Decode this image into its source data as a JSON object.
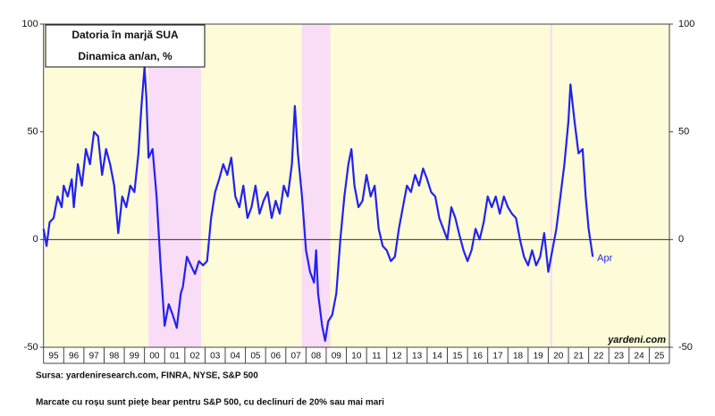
{
  "chart_data": {
    "type": "line",
    "title": "Datoria în marjă SUA",
    "subtitle": "Dinamica an/an, %",
    "source": "Sursa: yardeniresearch.com, FINRA, NYSE, S&P 500",
    "note": "Marcate cu roșu sunt piețe bear pentru S&P 500, cu declinuri de 20% sau mai mari",
    "watermark": "yardeni.com",
    "end_label": "Apr",
    "xlim": [
      1995,
      2026
    ],
    "ylim": [
      -50,
      100
    ],
    "yticks": [
      -50,
      0,
      50,
      100
    ],
    "y2lim": [
      -50,
      100
    ],
    "y2ticks": [
      -50,
      0,
      50,
      100
    ],
    "xticks": [
      {
        "value": 1995.5,
        "label": "95"
      },
      {
        "value": 1996.5,
        "label": "96"
      },
      {
        "value": 1997.5,
        "label": "97"
      },
      {
        "value": 1998.5,
        "label": "98"
      },
      {
        "value": 1999.5,
        "label": "99"
      },
      {
        "value": 2000.5,
        "label": "00"
      },
      {
        "value": 2001.5,
        "label": "01"
      },
      {
        "value": 2002.5,
        "label": "02"
      },
      {
        "value": 2003.5,
        "label": "03"
      },
      {
        "value": 2004.5,
        "label": "04"
      },
      {
        "value": 2005.5,
        "label": "05"
      },
      {
        "value": 2006.5,
        "label": "06"
      },
      {
        "value": 2007.5,
        "label": "07"
      },
      {
        "value": 2008.5,
        "label": "08"
      },
      {
        "value": 2009.5,
        "label": "09"
      },
      {
        "value": 2010.5,
        "label": "10"
      },
      {
        "value": 2011.5,
        "label": "11"
      },
      {
        "value": 2012.5,
        "label": "12"
      },
      {
        "value": 2013.5,
        "label": "13"
      },
      {
        "value": 2014.5,
        "label": "14"
      },
      {
        "value": 2015.5,
        "label": "15"
      },
      {
        "value": 2016.5,
        "label": "16"
      },
      {
        "value": 2017.5,
        "label": "17"
      },
      {
        "value": 2018.5,
        "label": "18"
      },
      {
        "value": 2019.5,
        "label": "19"
      },
      {
        "value": 2020.5,
        "label": "20"
      },
      {
        "value": 2021.5,
        "label": "21"
      },
      {
        "value": 2022.5,
        "label": "22"
      },
      {
        "value": 2023.5,
        "label": "23"
      },
      {
        "value": 2024.5,
        "label": "24"
      },
      {
        "value": 2025.5,
        "label": "25"
      }
    ],
    "zero_line": true,
    "background": "#fdfbd8",
    "shade_color": "#f9dcf6",
    "shaded": [
      [
        2000.2,
        2002.8
      ],
      [
        2007.8,
        2009.2
      ],
      [
        2020.1,
        2020.2
      ]
    ],
    "series": [
      {
        "name": "Datoria în marjă",
        "color": "#2222ee",
        "x": [
          1995.0,
          1995.15,
          1995.3,
          1995.5,
          1995.7,
          1995.9,
          1996.0,
          1996.2,
          1996.4,
          1996.5,
          1996.7,
          1996.9,
          1997.1,
          1997.3,
          1997.5,
          1997.7,
          1997.9,
          1998.1,
          1998.3,
          1998.5,
          1998.7,
          1998.9,
          1999.1,
          1999.3,
          1999.5,
          1999.7,
          1999.85,
          2000.0,
          2000.1,
          2000.2,
          2000.4,
          2000.6,
          2000.8,
          2001.0,
          2001.2,
          2001.4,
          2001.6,
          2001.8,
          2001.9,
          2002.1,
          2002.3,
          2002.5,
          2002.7,
          2002.9,
          2003.1,
          2003.3,
          2003.5,
          2003.7,
          2003.9,
          2004.1,
          2004.3,
          2004.5,
          2004.7,
          2004.9,
          2005.1,
          2005.3,
          2005.5,
          2005.7,
          2005.9,
          2006.1,
          2006.3,
          2006.5,
          2006.7,
          2006.9,
          2007.1,
          2007.3,
          2007.45,
          2007.6,
          2007.8,
          2008.0,
          2008.2,
          2008.4,
          2008.5,
          2008.6,
          2008.8,
          2008.95,
          2009.1,
          2009.3,
          2009.5,
          2009.7,
          2009.9,
          2010.1,
          2010.25,
          2010.4,
          2010.6,
          2010.8,
          2011.0,
          2011.2,
          2011.4,
          2011.6,
          2011.8,
          2012.0,
          2012.2,
          2012.4,
          2012.6,
          2012.8,
          2013.0,
          2013.2,
          2013.4,
          2013.6,
          2013.8,
          2014.0,
          2014.2,
          2014.4,
          2014.6,
          2014.8,
          2015.0,
          2015.2,
          2015.4,
          2015.6,
          2015.8,
          2016.0,
          2016.2,
          2016.4,
          2016.6,
          2016.8,
          2017.0,
          2017.2,
          2017.4,
          2017.6,
          2017.8,
          2018.0,
          2018.2,
          2018.4,
          2018.6,
          2018.8,
          2019.0,
          2019.2,
          2019.4,
          2019.6,
          2019.8,
          2020.0,
          2020.2,
          2020.4,
          2020.6,
          2020.8,
          2021.0,
          2021.1,
          2021.3,
          2021.5,
          2021.7,
          2021.85,
          2022.0,
          2022.2
        ],
        "values": [
          5,
          -3,
          8,
          10,
          20,
          15,
          25,
          20,
          28,
          15,
          35,
          25,
          42,
          35,
          50,
          48,
          30,
          42,
          35,
          25,
          3,
          20,
          15,
          25,
          22,
          40,
          62,
          80,
          65,
          38,
          42,
          20,
          -12,
          -40,
          -30,
          -35,
          -41,
          -25,
          -22,
          -8,
          -12,
          -16,
          -10,
          -12,
          -10,
          10,
          22,
          28,
          35,
          30,
          38,
          20,
          15,
          25,
          10,
          15,
          25,
          12,
          18,
          22,
          10,
          18,
          12,
          25,
          20,
          35,
          62,
          40,
          20,
          -5,
          -15,
          -20,
          -5,
          -25,
          -40,
          -47,
          -38,
          -35,
          -25,
          0,
          20,
          35,
          42,
          25,
          15,
          18,
          30,
          20,
          25,
          5,
          -3,
          -5,
          -10,
          -8,
          5,
          15,
          25,
          22,
          30,
          25,
          33,
          28,
          22,
          20,
          10,
          5,
          0,
          15,
          10,
          2,
          -5,
          -10,
          -5,
          5,
          0,
          8,
          20,
          15,
          20,
          12,
          20,
          15,
          12,
          10,
          0,
          -8,
          -12,
          -5,
          -12,
          -8,
          3,
          -15,
          -5,
          5,
          20,
          35,
          55,
          72,
          55,
          40,
          42,
          20,
          5,
          -8
        ]
      }
    ]
  }
}
